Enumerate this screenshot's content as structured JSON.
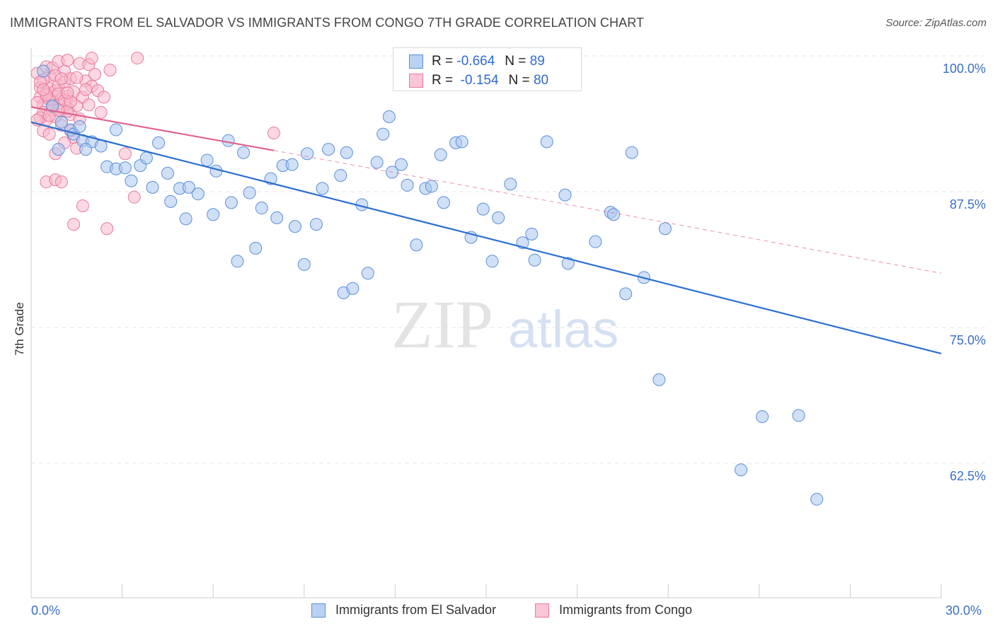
{
  "header": {
    "title": "IMMIGRANTS FROM EL SALVADOR VS IMMIGRANTS FROM CONGO 7TH GRADE CORRELATION CHART",
    "source": "Source: ZipAtlas.com"
  },
  "watermark": {
    "zip": "ZIP",
    "atlas": "atlas"
  },
  "colors": {
    "blue_fill": "#a9c6f0",
    "blue_stroke": "#5b8fd6",
    "blue_line": "#2c6fd0",
    "pink_fill": "#f7b8cb",
    "pink_stroke": "#e87a9e",
    "pink_line": "#e0628e",
    "tick_label": "#3b6fc6",
    "grid": "#e6e6e6"
  },
  "legend": {
    "items": [
      {
        "r_label": "R =",
        "r_value": "-0.664",
        "n_label": "N =",
        "n_value": "89"
      },
      {
        "r_label": "R =",
        "r_value": "-0.154",
        "n_label": "N =",
        "n_value": "80"
      }
    ]
  },
  "chart_data": {
    "type": "scatter",
    "xlabel": "",
    "ylabel": "7th Grade",
    "x_range": [
      0,
      30
    ],
    "y_range": [
      52.5,
      101.5
    ],
    "x_corner_labels": {
      "left": "0.0%",
      "right": "30.0%"
    },
    "y_ticks": [
      {
        "value": 100,
        "label": "100.0%"
      },
      {
        "value": 87.5,
        "label": "87.5%"
      },
      {
        "value": 75,
        "label": "75.0%"
      },
      {
        "value": 62.5,
        "label": "62.5%"
      }
    ],
    "grid": "horizontal dashed",
    "legend_position": "top-center",
    "series": [
      {
        "name": "Immigrants from El Salvador",
        "color": "blue",
        "trend": {
          "x": [
            0,
            30
          ],
          "y": [
            93.9,
            72.6
          ],
          "style": "solid"
        },
        "points": [
          [
            0.4,
            98.6
          ],
          [
            0.7,
            95.4
          ],
          [
            1.0,
            93.9
          ],
          [
            1.3,
            93.2
          ],
          [
            1.4,
            92.8
          ],
          [
            1.7,
            92.2
          ],
          [
            2.0,
            92.1
          ],
          [
            1.8,
            91.4
          ],
          [
            2.3,
            91.7
          ],
          [
            2.5,
            89.8
          ],
          [
            2.8,
            93.2
          ],
          [
            2.8,
            89.6
          ],
          [
            3.1,
            89.7
          ],
          [
            3.3,
            88.5
          ],
          [
            3.6,
            89.9
          ],
          [
            3.8,
            90.6
          ],
          [
            4.0,
            87.9
          ],
          [
            4.2,
            92.0
          ],
          [
            4.5,
            89.2
          ],
          [
            4.6,
            86.6
          ],
          [
            4.9,
            87.8
          ],
          [
            5.1,
            85.0
          ],
          [
            5.2,
            87.9
          ],
          [
            5.5,
            87.3
          ],
          [
            5.8,
            90.4
          ],
          [
            6.0,
            85.4
          ],
          [
            6.1,
            89.4
          ],
          [
            6.5,
            92.2
          ],
          [
            6.6,
            86.5
          ],
          [
            6.8,
            81.1
          ],
          [
            7.0,
            91.1
          ],
          [
            7.2,
            87.4
          ],
          [
            7.4,
            82.3
          ],
          [
            7.6,
            86.0
          ],
          [
            7.9,
            88.7
          ],
          [
            8.1,
            85.1
          ],
          [
            8.3,
            89.9
          ],
          [
            8.6,
            90.0
          ],
          [
            8.7,
            84.3
          ],
          [
            9.0,
            80.8
          ],
          [
            9.1,
            91.0
          ],
          [
            9.4,
            84.5
          ],
          [
            9.6,
            87.8
          ],
          [
            9.8,
            91.4
          ],
          [
            10.2,
            89.0
          ],
          [
            10.4,
            91.1
          ],
          [
            10.3,
            78.2
          ],
          [
            10.6,
            78.6
          ],
          [
            10.9,
            86.3
          ],
          [
            11.1,
            80.0
          ],
          [
            11.4,
            90.2
          ],
          [
            11.6,
            92.8
          ],
          [
            11.8,
            94.4
          ],
          [
            11.9,
            89.3
          ],
          [
            12.2,
            90.0
          ],
          [
            12.4,
            88.1
          ],
          [
            12.7,
            82.6
          ],
          [
            13.0,
            87.8
          ],
          [
            13.2,
            88.0
          ],
          [
            13.5,
            90.9
          ],
          [
            13.6,
            86.5
          ],
          [
            14.0,
            92.0
          ],
          [
            14.2,
            92.1
          ],
          [
            14.5,
            83.3
          ],
          [
            14.9,
            85.9
          ],
          [
            15.2,
            81.1
          ],
          [
            15.4,
            85.1
          ],
          [
            15.8,
            88.2
          ],
          [
            16.2,
            82.8
          ],
          [
            16.5,
            83.6
          ],
          [
            16.6,
            81.2
          ],
          [
            16.8,
            98.1
          ],
          [
            17.0,
            92.1
          ],
          [
            17.6,
            87.2
          ],
          [
            17.7,
            80.9
          ],
          [
            18.6,
            82.9
          ],
          [
            19.1,
            85.6
          ],
          [
            19.2,
            85.4
          ],
          [
            19.6,
            78.1
          ],
          [
            19.8,
            91.1
          ],
          [
            20.2,
            79.6
          ],
          [
            20.9,
            84.1
          ],
          [
            20.7,
            70.2
          ],
          [
            23.4,
            61.9
          ],
          [
            24.1,
            66.8
          ],
          [
            25.3,
            66.9
          ],
          [
            25.9,
            59.2
          ],
          [
            0.9,
            91.4
          ],
          [
            1.6,
            93.5
          ]
        ]
      },
      {
        "name": "Immigrants from Congo",
        "color": "pink",
        "trend": {
          "x": [
            0,
            8
          ],
          "y": [
            95.3,
            91.3
          ],
          "style": "solid",
          "extension": {
            "x": [
              8,
              30
            ],
            "y": [
              91.3,
              80.0
            ],
            "style": "dashed"
          }
        },
        "points": [
          [
            0.2,
            98.4
          ],
          [
            0.3,
            97.1
          ],
          [
            0.3,
            96.2
          ],
          [
            0.4,
            95.5
          ],
          [
            0.4,
            94.8
          ],
          [
            0.5,
            96.6
          ],
          [
            0.5,
            94.1
          ],
          [
            0.6,
            98.2
          ],
          [
            0.6,
            97.0
          ],
          [
            0.7,
            95.9
          ],
          [
            0.7,
            95.0
          ],
          [
            0.8,
            96.8
          ],
          [
            0.8,
            94.4
          ],
          [
            0.9,
            97.3
          ],
          [
            0.9,
            95.6
          ],
          [
            1.0,
            96.1
          ],
          [
            1.0,
            94.9
          ],
          [
            1.1,
            98.6
          ],
          [
            1.1,
            97.6
          ],
          [
            1.2,
            96.3
          ],
          [
            1.2,
            95.2
          ],
          [
            1.3,
            97.9
          ],
          [
            1.3,
            94.6
          ],
          [
            1.4,
            96.7
          ],
          [
            1.5,
            95.4
          ],
          [
            0.2,
            95.7
          ],
          [
            0.3,
            94.3
          ],
          [
            0.4,
            97.8
          ],
          [
            0.5,
            99.0
          ],
          [
            0.6,
            96.0
          ],
          [
            0.7,
            98.9
          ],
          [
            0.8,
            98.2
          ],
          [
            0.9,
            96.5
          ],
          [
            1.0,
            97.9
          ],
          [
            1.1,
            95.9
          ],
          [
            1.2,
            94.9
          ],
          [
            1.0,
            93.6
          ],
          [
            1.3,
            93.1
          ],
          [
            1.4,
            92.5
          ],
          [
            1.6,
            94.2
          ],
          [
            1.7,
            96.2
          ],
          [
            1.8,
            97.7
          ],
          [
            1.9,
            95.5
          ],
          [
            2.0,
            97.2
          ],
          [
            2.1,
            98.3
          ],
          [
            2.2,
            96.8
          ],
          [
            0.4,
            93.1
          ],
          [
            0.6,
            92.8
          ],
          [
            0.8,
            91.0
          ],
          [
            1.1,
            92.0
          ],
          [
            1.3,
            95.8
          ],
          [
            1.5,
            98.0
          ],
          [
            1.6,
            99.3
          ],
          [
            1.8,
            96.9
          ],
          [
            1.9,
            99.2
          ],
          [
            2.3,
            94.8
          ],
          [
            2.6,
            98.7
          ],
          [
            3.1,
            91.0
          ],
          [
            3.4,
            87.0
          ],
          [
            3.5,
            99.8
          ],
          [
            0.5,
            88.4
          ],
          [
            0.8,
            88.6
          ],
          [
            1.0,
            88.4
          ],
          [
            1.4,
            84.5
          ],
          [
            1.7,
            86.2
          ],
          [
            2.5,
            84.1
          ],
          [
            1.5,
            91.5
          ],
          [
            0.9,
            99.5
          ],
          [
            1.2,
            99.6
          ],
          [
            2.0,
            99.8
          ],
          [
            2.4,
            96.2
          ],
          [
            8.0,
            92.9
          ],
          [
            0.3,
            97.6
          ],
          [
            0.5,
            96.4
          ],
          [
            0.7,
            95.3
          ],
          [
            0.2,
            94.1
          ],
          [
            0.4,
            96.9
          ],
          [
            0.6,
            94.5
          ],
          [
            1.2,
            96.6
          ],
          [
            0.9,
            95.0
          ]
        ]
      }
    ]
  },
  "bottom_legend": [
    {
      "label": "Immigrants from El Salvador"
    },
    {
      "label": "Immigrants from Congo"
    }
  ]
}
